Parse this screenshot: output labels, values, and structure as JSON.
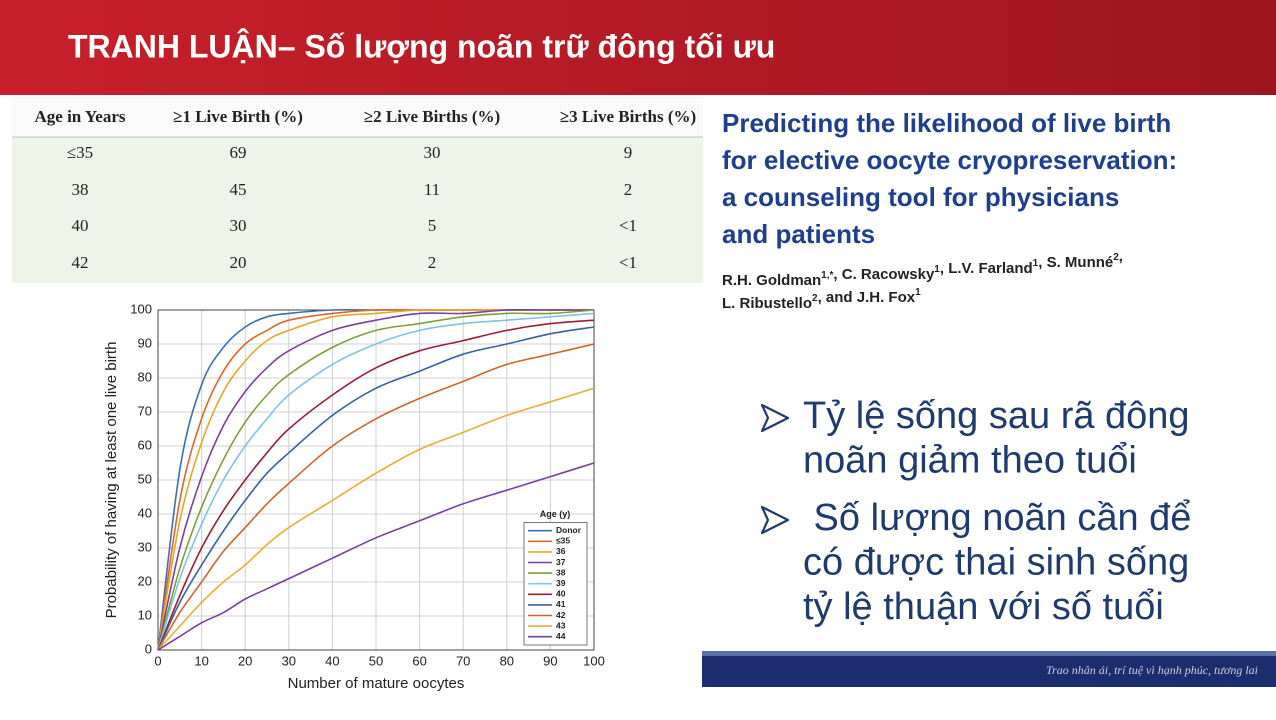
{
  "header": {
    "title": "TRANH LUẬN– Số lượng noãn trữ đông tối ưu"
  },
  "table": {
    "headers": [
      "Age in Years",
      "≥1 Live Birth (%)",
      "≥2 Live Births (%)",
      "≥3 Live Births (%)"
    ],
    "rows": [
      [
        "≤35",
        "69",
        "30",
        "9"
      ],
      [
        "38",
        "45",
        "11",
        "2"
      ],
      [
        "40",
        "30",
        "5",
        "<1"
      ],
      [
        "42",
        "20",
        "2",
        "<1"
      ]
    ]
  },
  "chart_data": {
    "type": "line",
    "x_label": "Number of mature oocytes",
    "y_label": "Probability of having at least one live birth",
    "legend_title": "Age (y)",
    "legend": "lower right",
    "grid": true,
    "x": [
      0,
      5,
      10,
      15,
      20,
      25,
      30,
      40,
      50,
      60,
      70,
      80,
      90,
      100
    ],
    "xlim": [
      0,
      100
    ],
    "ylim": [
      0,
      100
    ],
    "xticks": [
      0,
      10,
      20,
      30,
      40,
      50,
      60,
      70,
      80,
      90,
      100
    ],
    "yticks": [
      0,
      10,
      20,
      30,
      40,
      50,
      60,
      70,
      80,
      90,
      100
    ],
    "series": [
      {
        "name": "Donor",
        "color": "#3d6db5",
        "values": [
          0,
          53,
          78,
          89,
          95,
          98,
          99,
          100,
          100,
          100,
          100,
          100,
          100,
          100
        ]
      },
      {
        "name": "≤35",
        "color": "#e0662a",
        "values": [
          0,
          44,
          68,
          82,
          90,
          94,
          97,
          99,
          100,
          100,
          100,
          100,
          100,
          100
        ]
      },
      {
        "name": "36",
        "color": "#e6a823",
        "values": [
          0,
          38,
          61,
          76,
          85,
          91,
          94,
          98,
          99,
          100,
          100,
          100,
          100,
          100
        ]
      },
      {
        "name": "37",
        "color": "#7b3f9e",
        "values": [
          0,
          30,
          51,
          66,
          76,
          83,
          88,
          94,
          97,
          99,
          99,
          100,
          100,
          100
        ]
      },
      {
        "name": "38",
        "color": "#7ea03a",
        "values": [
          0,
          24,
          42,
          56,
          67,
          75,
          81,
          89,
          94,
          96,
          98,
          99,
          99,
          100
        ]
      },
      {
        "name": "39",
        "color": "#7fc3e6",
        "values": [
          0,
          21,
          37,
          50,
          60,
          68,
          75,
          84,
          90,
          94,
          96,
          97,
          98,
          99
        ]
      },
      {
        "name": "40",
        "color": "#9a1f33",
        "values": [
          0,
          16,
          30,
          41,
          50,
          58,
          65,
          75,
          83,
          88,
          91,
          94,
          96,
          97
        ]
      },
      {
        "name": "41",
        "color": "#3762a3",
        "values": [
          0,
          14,
          25,
          35,
          44,
          52,
          58,
          69,
          77,
          82,
          87,
          90,
          93,
          95
        ]
      },
      {
        "name": "42",
        "color": "#d2632a",
        "values": [
          0,
          11,
          20,
          29,
          36,
          43,
          49,
          60,
          68,
          74,
          79,
          84,
          87,
          90
        ]
      },
      {
        "name": "43",
        "color": "#e8ae3a",
        "values": [
          0,
          7,
          14,
          20,
          25,
          31,
          36,
          44,
          52,
          59,
          64,
          69,
          73,
          77
        ]
      },
      {
        "name": "44",
        "color": "#7a3fa0",
        "values": [
          0,
          4,
          8,
          11,
          15,
          18,
          21,
          27,
          33,
          38,
          43,
          47,
          51,
          55
        ]
      }
    ]
  },
  "paper": {
    "title_lines": [
      "Predicting the likelihood of live birth",
      "for elective oocyte cryopreservation:",
      "a counseling tool for physicians",
      "and patients"
    ],
    "authors": [
      [
        {
          "name": "R.H. Goldman",
          "affil": "1,*"
        },
        {
          "name": ", C. Racowsky",
          "affil": "1"
        },
        {
          "name": ", L.V. Farland",
          "affil": "1"
        },
        {
          "name": ", S. Munné",
          "affil": "2"
        },
        {
          "name": ","
        }
      ],
      [
        {
          "name": "L. Ribustello",
          "affil": "2"
        },
        {
          "name": ", and J.H. Fox",
          "affil": "1"
        }
      ]
    ]
  },
  "bullets": [
    [
      "Tỷ lệ sống sau rã đông",
      "noãn giảm theo tuổi"
    ],
    [
      " Số lượng noãn cần để",
      "có được thai sinh sống",
      "tỷ lệ thuận với số tuổi"
    ]
  ],
  "footer": {
    "text": "Trao nhân ái, trí tuệ vì hạnh phúc, tương lai"
  }
}
